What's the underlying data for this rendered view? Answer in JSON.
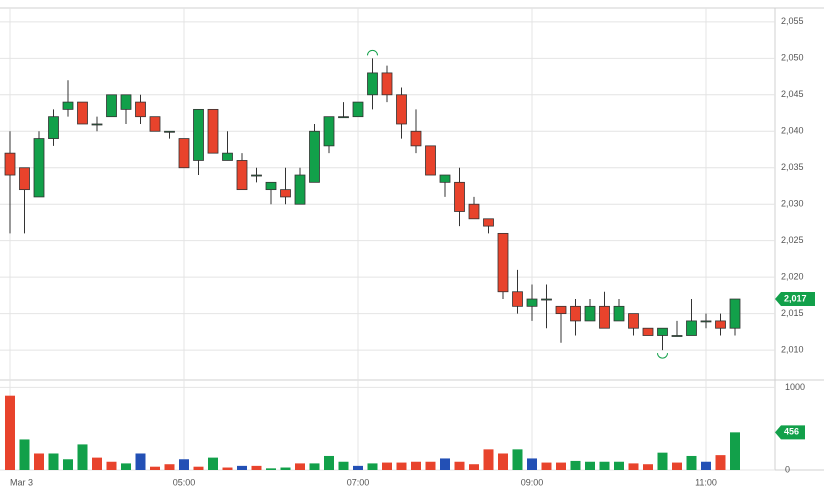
{
  "chart_data": [
    {
      "type": "candlestick",
      "categories": [
        "Mar 3",
        null,
        null,
        null,
        null,
        null,
        null,
        null,
        null,
        null,
        null,
        null,
        "05:00",
        null,
        null,
        null,
        null,
        null,
        null,
        null,
        null,
        null,
        null,
        null,
        "07:00",
        null,
        null,
        null,
        null,
        null,
        null,
        null,
        null,
        null,
        null,
        null,
        "09:00",
        null,
        null,
        null,
        null,
        null,
        null,
        null,
        null,
        null,
        null,
        null,
        "11:00",
        null,
        null
      ],
      "open": [
        2037,
        2035,
        2031,
        2039,
        2043,
        2044,
        2041,
        2042,
        2043,
        2044,
        2042,
        2040,
        2039,
        2036,
        2043,
        2036,
        2036,
        2034,
        2032,
        2032,
        2030,
        2033,
        2038,
        2042,
        2042,
        2045,
        2048,
        2045,
        2040,
        2038,
        2033,
        2033,
        2030,
        2028,
        2026,
        2018,
        2016,
        2017,
        2016,
        2016,
        2014,
        2016,
        2014,
        2015,
        2013,
        2012,
        2012,
        2012,
        2014,
        2014,
        2013
      ],
      "high": [
        2040,
        2035,
        2040,
        2043,
        2047,
        2044,
        2042,
        2045,
        2045,
        2045,
        2042,
        2040,
        2039,
        2043,
        2043,
        2040,
        2037,
        2035,
        2033,
        2035,
        2035,
        2041,
        2042,
        2044,
        2044,
        2050,
        2049,
        2046,
        2043,
        2038,
        2034,
        2035,
        2031,
        2028,
        2026,
        2021,
        2019,
        2019,
        2016,
        2017,
        2017,
        2018,
        2017,
        2015,
        2013,
        2013,
        2014,
        2017,
        2015,
        2015,
        2017
      ],
      "low": [
        2026,
        2026,
        2031,
        2038,
        2042,
        2041,
        2040,
        2042,
        2041,
        2041,
        2040,
        2039,
        2035,
        2034,
        2037,
        2036,
        2032,
        2033,
        2030,
        2030,
        2030,
        2033,
        2037,
        2042,
        2042,
        2043,
        2044,
        2039,
        2037,
        2034,
        2031,
        2027,
        2028,
        2026,
        2017,
        2015,
        2014,
        2013,
        2011,
        2012,
        2014,
        2013,
        2014,
        2012,
        2012,
        2010,
        2012,
        2012,
        2013,
        2012,
        2012
      ],
      "close": [
        2034,
        2032,
        2039,
        2042,
        2044,
        2041,
        2041,
        2045,
        2045,
        2042,
        2040,
        2040,
        2035,
        2043,
        2037,
        2037,
        2032,
        2034,
        2033,
        2031,
        2034,
        2040,
        2042,
        2042,
        2044,
        2048,
        2045,
        2041,
        2038,
        2034,
        2034,
        2029,
        2028,
        2027,
        2018,
        2016,
        2017,
        2017,
        2015,
        2014,
        2016,
        2013,
        2016,
        2013,
        2012,
        2013,
        2012,
        2014,
        2014,
        2013,
        2017
      ],
      "up_color": "#12a04a",
      "down_color": "#e8432c",
      "ylim": [
        2005.9,
        2056.9
      ],
      "yticks": [
        {
          "value": 2010,
          "label": "2,010"
        },
        {
          "value": 2015,
          "label": "2,015"
        },
        {
          "value": 2020,
          "label": "2,020"
        },
        {
          "value": 2025,
          "label": "2,025"
        },
        {
          "value": 2030,
          "label": "2,030"
        },
        {
          "value": 2035,
          "label": "2,035"
        },
        {
          "value": 2040,
          "label": "2,040"
        },
        {
          "value": 2045,
          "label": "2,045"
        },
        {
          "value": 2050,
          "label": "2,050"
        },
        {
          "value": 2055,
          "label": "2,055"
        }
      ],
      "price_tag": {
        "value": 2017,
        "label": "2,017"
      },
      "grid": true
    },
    {
      "type": "bar",
      "values": [
        900,
        370,
        200,
        200,
        130,
        310,
        150,
        100,
        80,
        200,
        40,
        70,
        130,
        40,
        150,
        30,
        50,
        50,
        20,
        30,
        80,
        80,
        170,
        100,
        50,
        80,
        90,
        90,
        100,
        100,
        140,
        100,
        70,
        250,
        200,
        250,
        140,
        90,
        90,
        110,
        100,
        100,
        100,
        80,
        70,
        210,
        90,
        170,
        100,
        180,
        456
      ],
      "colors": [
        "#e8432c",
        "#12a04a",
        "#e8432c",
        "#12a04a",
        "#12a04a",
        "#12a04a",
        "#e8432c",
        "#e8432c",
        "#12a04a",
        "#2350b5",
        "#e8432c",
        "#e8432c",
        "#2350b5",
        "#e8432c",
        "#12a04a",
        "#e8432c",
        "#2350b5",
        "#e8432c",
        "#12a04a",
        "#12a04a",
        "#e8432c",
        "#12a04a",
        "#12a04a",
        "#12a04a",
        "#2350b5",
        "#12a04a",
        "#e8432c",
        "#e8432c",
        "#e8432c",
        "#e8432c",
        "#2350b5",
        "#e8432c",
        "#e8432c",
        "#e8432c",
        "#e8432c",
        "#12a04a",
        "#2350b5",
        "#e8432c",
        "#e8432c",
        "#12a04a",
        "#12a04a",
        "#12a04a",
        "#12a04a",
        "#e8432c",
        "#e8432c",
        "#12a04a",
        "#e8432c",
        "#12a04a",
        "#2350b5",
        "#e8432c",
        "#12a04a"
      ],
      "ylim": [
        0,
        1090
      ],
      "yticks": [
        0,
        1000
      ],
      "grid": true
    }
  ]
}
